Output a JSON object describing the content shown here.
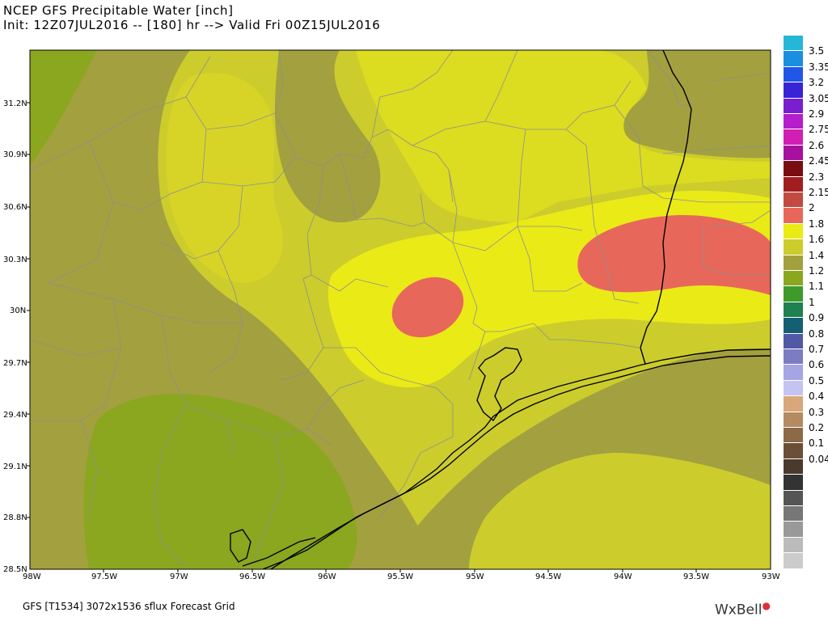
{
  "header": {
    "title": "NCEP GFS Precipitable Water [inch]",
    "subtitle": "Init: 12Z07JUL2016 -- [180] hr --> Valid Fri 00Z15JUL2016"
  },
  "map": {
    "lat_labels": [
      "31.2N",
      "30.9N",
      "30.6N",
      "30.3N",
      "30N",
      "29.7N",
      "29.4N",
      "29.1N",
      "28.8N",
      "28.5N"
    ],
    "lon_labels": [
      "98W",
      "97.5W",
      "97W",
      "96.5W",
      "96W",
      "95.5W",
      "95W",
      "94.5W",
      "94W",
      "93.5W",
      "93W"
    ],
    "colors": {
      "pw_1_4": "#8ba61f",
      "pw_1_6": "#a3a03f",
      "pw_1_8": "#cccc2d",
      "pw_1_8_light": "#dcdc20",
      "pw_2_0": "#eaea17",
      "pw_2_15": "#e7685a",
      "county_lines": "#8f8f8f",
      "coastline": "#000000"
    }
  },
  "colorbar": {
    "levels": [
      {
        "label": "3.5",
        "color": "#27b7d6"
      },
      {
        "label": "3.35",
        "color": "#1a8fe0"
      },
      {
        "label": "3.2",
        "color": "#2156e6"
      },
      {
        "label": "3.05",
        "color": "#3724d6"
      },
      {
        "label": "2.9",
        "color": "#7a1fd0"
      },
      {
        "label": "2.75",
        "color": "#b51ecb"
      },
      {
        "label": "2.6",
        "color": "#d01fb2"
      },
      {
        "label": "2.45",
        "color": "#a6119f"
      },
      {
        "label": "2.3",
        "color": "#7a0d12"
      },
      {
        "label": "2.15",
        "color": "#a11e20"
      },
      {
        "label": "2",
        "color": "#c24a40"
      },
      {
        "label": "1.8",
        "color": "#e7685a"
      },
      {
        "label": "1.6",
        "color": "#eaea17"
      },
      {
        "label": "1.4",
        "color": "#cccc2d"
      },
      {
        "label": "1.2",
        "color": "#a3a03f"
      },
      {
        "label": "1.1",
        "color": "#8ba61f"
      },
      {
        "label": "1",
        "color": "#3f9a2c"
      },
      {
        "label": "0.9",
        "color": "#1f8052"
      },
      {
        "label": "0.8",
        "color": "#155f73"
      },
      {
        "label": "0.7",
        "color": "#5158a4"
      },
      {
        "label": "0.6",
        "color": "#7c7cc2"
      },
      {
        "label": "0.5",
        "color": "#a5a5e3"
      },
      {
        "label": "0.4",
        "color": "#c4c4f3"
      },
      {
        "label": "0.3",
        "color": "#d9a77a"
      },
      {
        "label": "0.2",
        "color": "#b48a60"
      },
      {
        "label": "0.1",
        "color": "#8c6a48"
      },
      {
        "label": "0.04",
        "color": "#6b4f36"
      },
      {
        "label": "",
        "color": "#4a3a2c"
      },
      {
        "label": "",
        "color": "#333333"
      },
      {
        "label": "",
        "color": "#555555"
      },
      {
        "label": "",
        "color": "#777777"
      },
      {
        "label": "",
        "color": "#999999"
      },
      {
        "label": "",
        "color": "#bbbbbb"
      },
      {
        "label": "",
        "color": "#cccccc"
      }
    ]
  },
  "footer": {
    "text": "GFS [T1534] 3072x1536 sflux Forecast Grid",
    "logo": "WxBell"
  }
}
